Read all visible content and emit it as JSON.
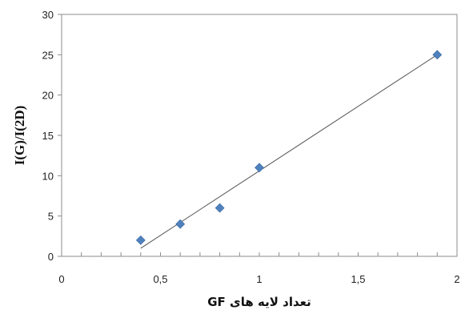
{
  "chart_data": {
    "type": "scatter",
    "title": "",
    "xlabel": "تعداد لایه های GF",
    "ylabel": "I(G)/I(2D)",
    "xlim": [
      0,
      2
    ],
    "ylim": [
      0,
      30
    ],
    "x_ticks": [
      0,
      0.5,
      1,
      1.5,
      2
    ],
    "x_tick_labels": [
      "0",
      "0,5",
      "1",
      "1,5",
      "2"
    ],
    "y_ticks": [
      0,
      5,
      10,
      15,
      20,
      25,
      30
    ],
    "y_tick_labels": [
      "0",
      "5",
      "10",
      "15",
      "20",
      "25",
      "30"
    ],
    "x_minor_tick_step": 0.1,
    "grid": false,
    "legend": "none",
    "marker": "diamond",
    "marker_color": "#4F81BD",
    "series": [
      {
        "x": [
          0.4,
          0.6,
          0.8,
          1.0,
          1.9
        ],
        "y": [
          2,
          4,
          6,
          11,
          25
        ]
      }
    ],
    "trendline": {
      "type": "linear",
      "color": "#555555",
      "x": [
        0.4,
        1.9
      ],
      "y": [
        1.0,
        25.0
      ]
    }
  }
}
